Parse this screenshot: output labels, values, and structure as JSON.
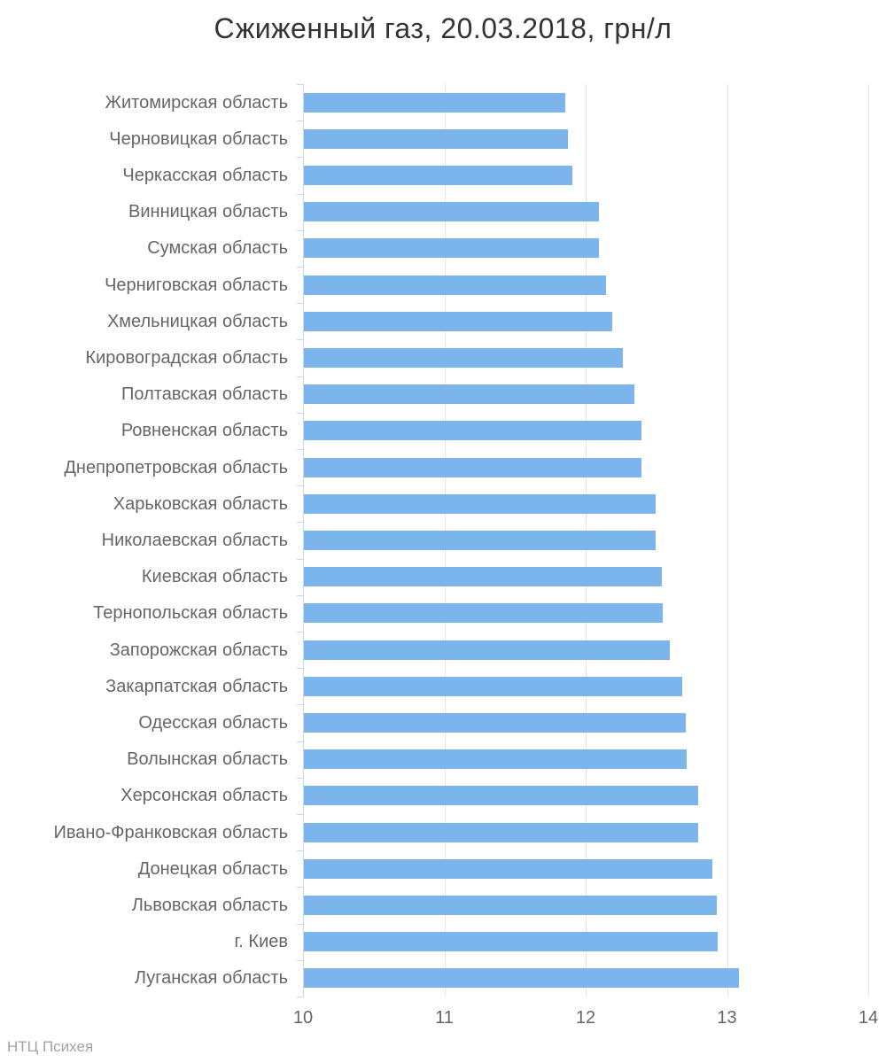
{
  "chart_data": {
    "type": "bar",
    "orientation": "horizontal",
    "title": "Сжиженный газ, 20.03.2018, грн/л",
    "xlabel": "",
    "ylabel": "",
    "categories": [
      "Житомирская область",
      "Черновицкая область",
      "Черкасская область",
      "Винницкая область",
      "Сумская область",
      "Черниговская область",
      "Хмельницкая область",
      "Кировоградская область",
      "Полтавская область",
      "Ровненская область",
      "Днепропетровская область",
      "Харьковская область",
      "Николаевская область",
      "Киевская область",
      "Тернопольская область",
      "Запорожская область",
      "Закарпатская область",
      "Одесская область",
      "Волынская область",
      "Херсонская область",
      "Ивано-Франковская область",
      "Донецкая область",
      "Львовская область",
      "г. Киев",
      "Луганская область"
    ],
    "values": [
      11.85,
      11.87,
      11.9,
      12.09,
      12.09,
      12.14,
      12.18,
      12.26,
      12.34,
      12.39,
      12.39,
      12.49,
      12.49,
      12.53,
      12.54,
      12.59,
      12.68,
      12.7,
      12.71,
      12.79,
      12.79,
      12.89,
      12.92,
      12.93,
      13.08
    ],
    "xlim": [
      10,
      14
    ],
    "x_ticks": [
      10,
      11,
      12,
      13,
      14
    ],
    "grid": true,
    "legend": false
  },
  "footer": {
    "label": "НТЦ Психея"
  },
  "colors": {
    "bar": "#7cb5ec",
    "title": "#333333",
    "category_label": "#666666",
    "axis_label": "#666666",
    "gridline": "#e6e6e6",
    "axis_line": "#ccd6eb",
    "footer": "#a3a3a3",
    "background": "#ffffff"
  }
}
